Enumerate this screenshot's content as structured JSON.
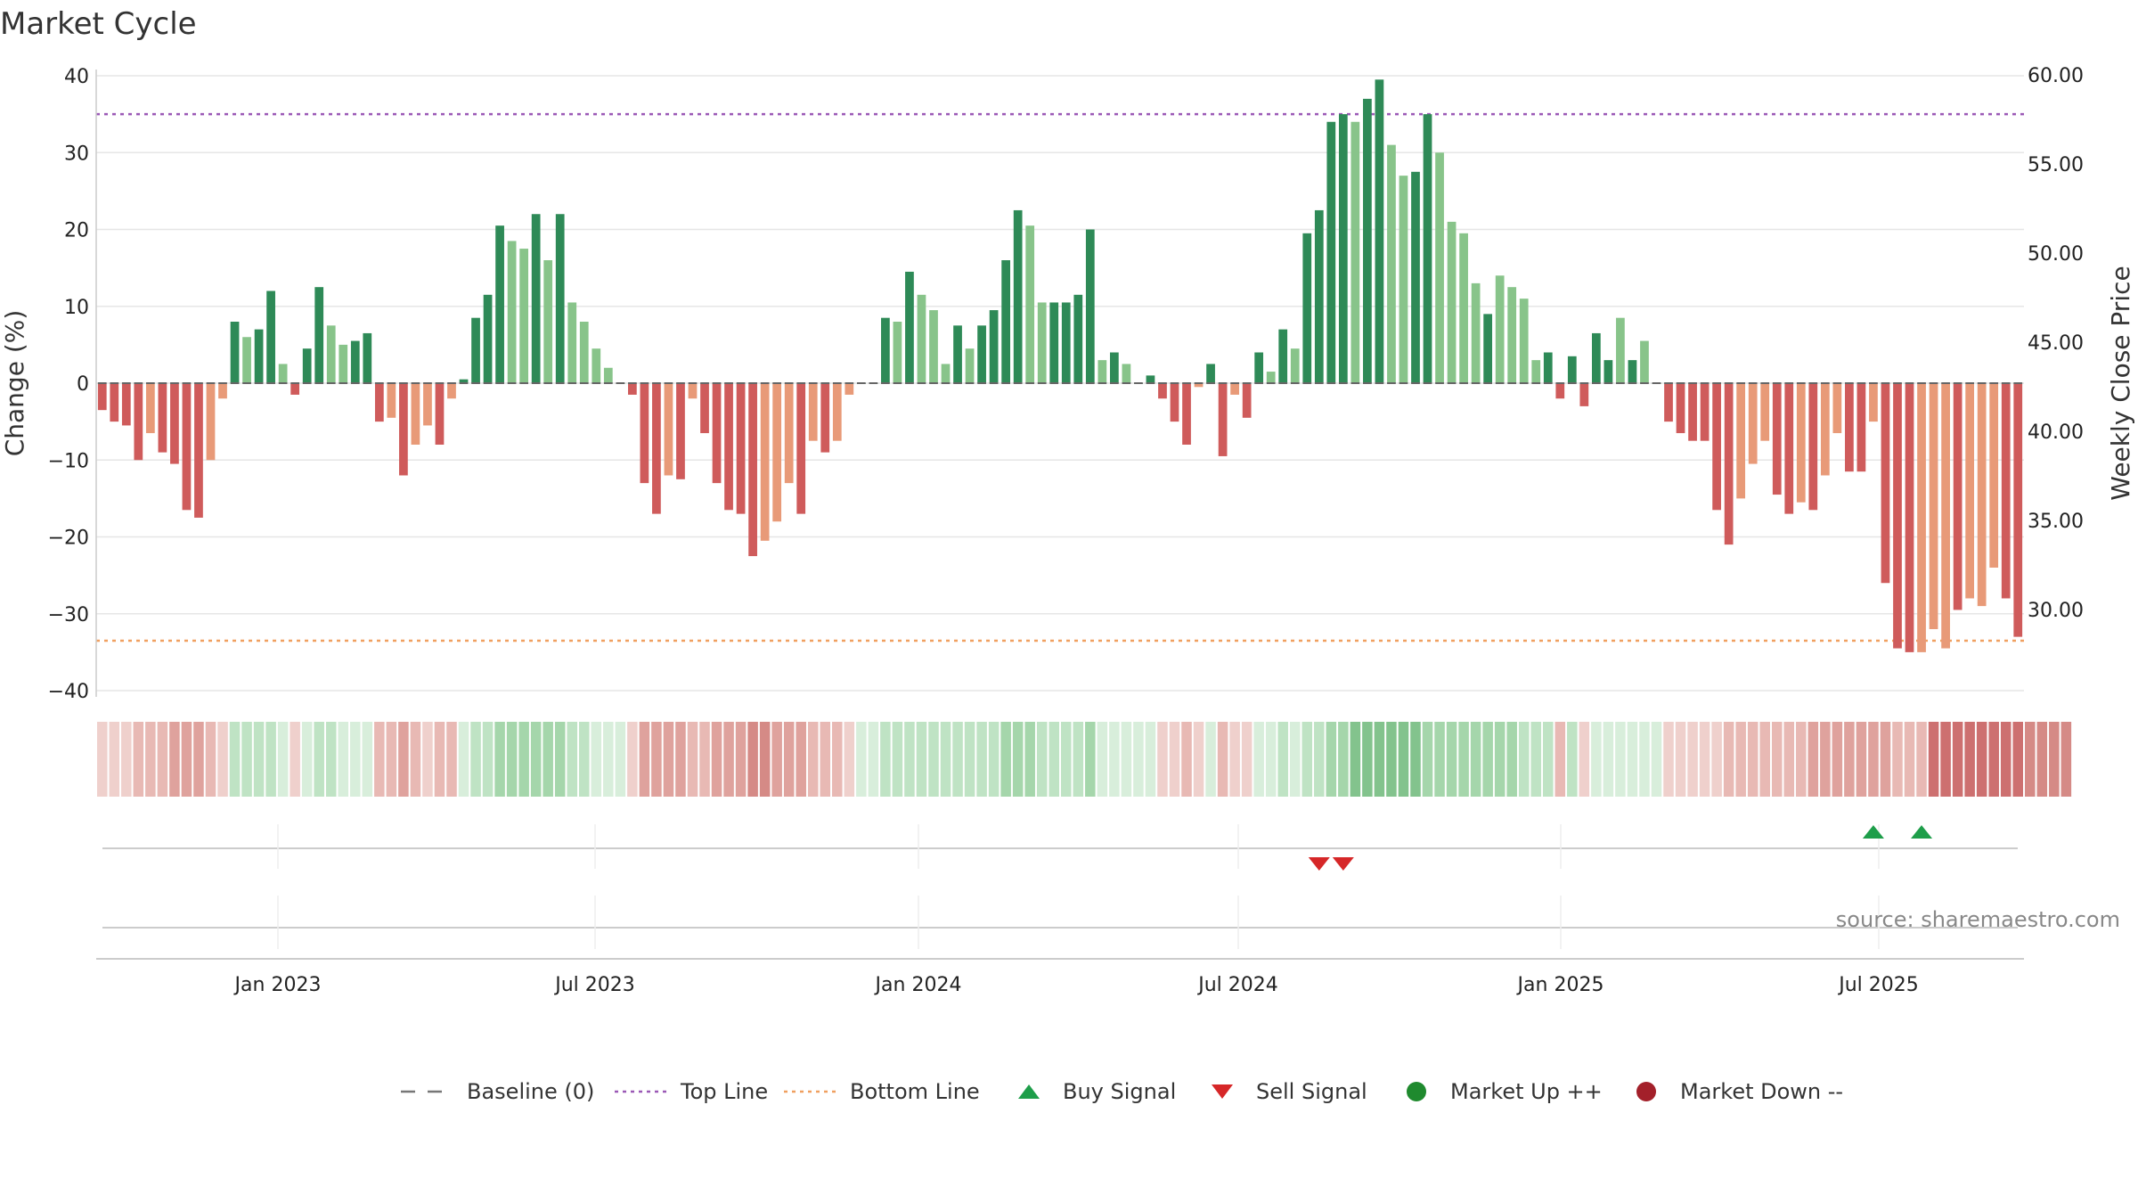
{
  "chart_data": {
    "type": "bar",
    "title": "Market Cycle",
    "ylabel_left": "Change (%)",
    "ylabel_right": "Weekly Close Price",
    "ylim": [
      -40,
      40
    ],
    "y_ticks": [
      40,
      30,
      20,
      10,
      0,
      -10,
      -20,
      -30,
      -40
    ],
    "y_tick_labels": [
      "40",
      "30",
      "20",
      "10",
      "0",
      "−10",
      "−20",
      "−30",
      "−40"
    ],
    "y2_ticks": [
      "60.00",
      "55.00",
      "50.00",
      "45.00",
      "40.00",
      "35.00",
      "30.00"
    ],
    "x_tick_labels": [
      "Jan 2023",
      "Jul 2023",
      "Jan 2024",
      "Jul 2024",
      "Jan 2025",
      "Jul 2025"
    ],
    "top_line": 35,
    "bottom_line": -33.5,
    "values": [
      -3.5,
      -5,
      -5.5,
      -10,
      -6.5,
      -9,
      -10.5,
      -16.5,
      -17.5,
      -10,
      -2,
      8,
      6,
      7,
      12,
      2.5,
      -1.5,
      4.5,
      12.5,
      7.5,
      5,
      5.5,
      6.5,
      -5,
      -4.5,
      -12,
      -8,
      -5.5,
      -8,
      -2,
      0.5,
      8.5,
      11.5,
      20.5,
      18.5,
      17.5,
      22,
      16,
      22,
      10.5,
      8,
      4.5,
      2,
      0,
      -1.5,
      -13,
      -17,
      -12,
      -12.5,
      -2,
      -6.5,
      -13,
      -16.5,
      -17,
      -22.5,
      -20.5,
      -18,
      -13,
      -17,
      -7.5,
      -9,
      -7.5,
      -1.5,
      0,
      0,
      8.5,
      8,
      14.5,
      11.5,
      9.5,
      2.5,
      7.5,
      4.5,
      7.5,
      9.5,
      16,
      22.5,
      20.5,
      10.5,
      10.5,
      10.5,
      11.5,
      20,
      3,
      4,
      2.5,
      0,
      1,
      -2,
      -5,
      -8,
      -0.5,
      2.5,
      -9.5,
      -1.5,
      -4.5,
      4,
      1.5,
      7,
      4.5,
      19.5,
      22.5,
      34,
      35,
      34,
      37,
      39.5,
      31,
      27,
      27.5,
      35,
      30,
      21,
      19.5,
      13,
      9,
      14,
      12.5,
      11,
      3,
      4,
      -2,
      3.5,
      -3,
      6.5,
      3,
      8.5,
      3,
      5.5,
      0,
      -5,
      -6.5,
      -7.5,
      -7.5,
      -16.5,
      -21,
      -15,
      -10.5,
      -7.5,
      -14.5,
      -17,
      -15.5,
      -16.5,
      -12,
      -6.5,
      -11.5,
      -11.5,
      -5,
      -26,
      -34.5,
      -35,
      -35,
      -32,
      -34.5,
      -29.5,
      -28,
      -29,
      -24,
      -28,
      -33
    ],
    "bar_style": [
      2,
      2,
      2,
      2,
      1,
      2,
      2,
      2,
      2,
      1,
      1,
      2,
      1,
      2,
      2,
      1,
      2,
      2,
      2,
      1,
      1,
      2,
      2,
      2,
      1,
      2,
      1,
      1,
      2,
      1,
      2,
      2,
      2,
      2,
      1,
      1,
      2,
      1,
      2,
      1,
      1,
      1,
      1,
      2,
      2,
      2,
      2,
      1,
      2,
      1,
      2,
      2,
      2,
      2,
      2,
      1,
      1,
      1,
      2,
      1,
      2,
      1,
      1,
      2,
      2,
      2,
      1,
      2,
      1,
      1,
      1,
      2,
      1,
      2,
      2,
      2,
      2,
      1,
      1,
      2,
      2,
      2,
      2,
      1,
      2,
      1,
      2,
      2,
      2,
      2,
      2,
      1,
      2,
      2,
      1,
      2,
      2,
      1,
      2,
      1,
      2,
      2,
      2,
      2,
      1,
      2,
      2,
      1,
      1,
      2,
      2,
      1,
      1,
      1,
      1,
      2,
      1,
      1,
      1,
      1,
      2,
      2,
      2,
      2,
      2,
      2,
      1,
      2,
      1,
      2,
      2,
      2,
      2,
      2,
      2,
      2,
      1,
      1,
      1,
      2,
      2,
      1,
      2,
      1,
      1,
      2,
      2,
      1,
      2,
      2,
      2,
      1,
      1,
      1,
      2,
      1,
      1,
      1,
      2,
      2
    ],
    "heat_strip": [
      1,
      1,
      1,
      2,
      2,
      2,
      3,
      3,
      3,
      2,
      1,
      2,
      2,
      2,
      2,
      1,
      1,
      1,
      2,
      2,
      1,
      1,
      1,
      2,
      2,
      3,
      2,
      1,
      2,
      2,
      1,
      2,
      2,
      3,
      3,
      3,
      3,
      3,
      3,
      2,
      2,
      1,
      1,
      1,
      1,
      3,
      3,
      3,
      3,
      2,
      2,
      3,
      3,
      3,
      4,
      4,
      3,
      3,
      3,
      2,
      2,
      2,
      1,
      1,
      1,
      2,
      2,
      2,
      2,
      2,
      2,
      2,
      2,
      2,
      2,
      3,
      3,
      3,
      2,
      2,
      2,
      2,
      3,
      1,
      1,
      1,
      1,
      1,
      1,
      1,
      2,
      1,
      1,
      2,
      1,
      1,
      1,
      1,
      2,
      1,
      2,
      2,
      3,
      3,
      4,
      4,
      4,
      4,
      4,
      4,
      3,
      3,
      3,
      3,
      3,
      3,
      3,
      3,
      2,
      2,
      2,
      2,
      2,
      1,
      1,
      1,
      1,
      1,
      1,
      1,
      1,
      1,
      1,
      1,
      1,
      2,
      2,
      2,
      2,
      2,
      2,
      2,
      3,
      3,
      3,
      3,
      3,
      3,
      3,
      2,
      2,
      2,
      5,
      5,
      5,
      5,
      5,
      5,
      5,
      5,
      4,
      4,
      4,
      4
    ],
    "buy_signals": [
      147,
      151
    ],
    "sell_signals": [
      101,
      103
    ],
    "legend": [
      {
        "label": "Baseline (0)",
        "symbol": "dash",
        "color": "#777777"
      },
      {
        "label": "Top Line",
        "symbol": "dotted",
        "color": "#9b59b6"
      },
      {
        "label": "Bottom Line",
        "symbol": "dotted",
        "color": "#f0a060"
      },
      {
        "label": "Buy Signal",
        "symbol": "triangle-up",
        "color": "#1e9e4a"
      },
      {
        "label": "Sell Signal",
        "symbol": "triangle-down",
        "color": "#d62728"
      },
      {
        "label": "Market Up ++",
        "symbol": "circle",
        "color": "#1f8a2e"
      },
      {
        "label": "Market Down --",
        "symbol": "circle",
        "color": "#a3202a"
      }
    ],
    "colors": {
      "up_strong": "#2e8a57",
      "up_light": "#88c48a",
      "down_strong": "#cf5b5b",
      "down_light": "#e89a78",
      "top_line": "#9b59b6",
      "bottom_line": "#f0a060"
    },
    "source": "source: sharemaestro.com"
  }
}
